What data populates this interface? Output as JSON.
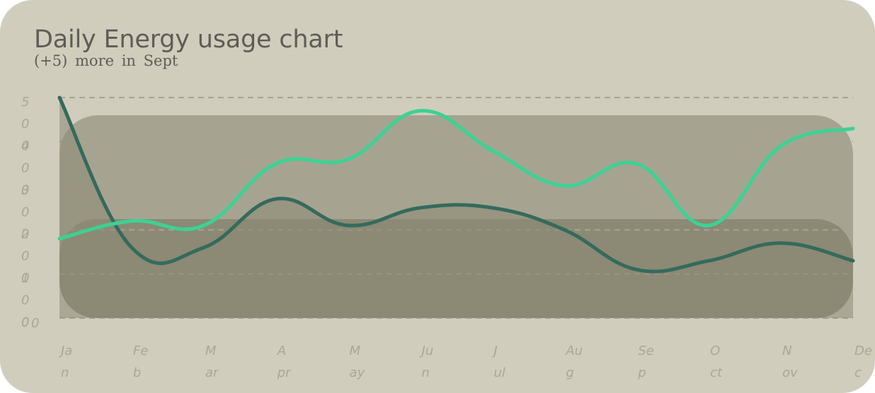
{
  "colors": {
    "card": "#d0cdbd",
    "grid": "#a6a393",
    "area_back": "#a6a491",
    "area_front": "#8c8974",
    "line_light": "#3bd294",
    "line_dark": "#336b5d",
    "line_dark_start": "#1a6557",
    "tick_text": "#a9a798",
    "title_text": "#5f5d56"
  },
  "chart_data": {
    "type": "line",
    "title": "Daily Energy usage chart",
    "subtitle": "(+5) more in Sept",
    "categories": [
      "Jan",
      "Feb",
      "Mar",
      "Apr",
      "May",
      "Jun",
      "Jul",
      "Aug",
      "Sep",
      "Oct",
      "Nov",
      "Dec"
    ],
    "category_labels": [
      [
        "Ja",
        "n"
      ],
      [
        "Fe",
        "b"
      ],
      [
        "M",
        "ar"
      ],
      [
        "A",
        "pr"
      ],
      [
        "M",
        "ay"
      ],
      [
        "Ju",
        "n"
      ],
      [
        "J",
        "ul"
      ],
      [
        "Au",
        "g"
      ],
      [
        "Se",
        "p"
      ],
      [
        "O",
        "ct"
      ],
      [
        "N",
        "ov"
      ],
      [
        "De",
        "c"
      ]
    ],
    "y_ticks": [
      {
        "value": 500,
        "chars": [
          "5",
          "0",
          "0"
        ]
      },
      {
        "value": 400,
        "chars": [
          "4",
          "0",
          "0"
        ]
      },
      {
        "value": 300,
        "chars": [
          "3",
          "0",
          "0"
        ]
      },
      {
        "value": 200,
        "chars": [
          "2",
          "0",
          "0"
        ]
      },
      {
        "value": 100,
        "chars": [
          "1",
          "0",
          "0"
        ]
      },
      {
        "value": 0,
        "chars": [
          "0"
        ]
      }
    ],
    "ylim": [
      0,
      500
    ],
    "grid": true,
    "legend": "none",
    "series": [
      {
        "values": [
          180,
          220,
          210,
          350,
          360,
          470,
          380,
          300,
          350,
          210,
          390,
          430
        ]
      },
      {
        "values": [
          500,
          160,
          160,
          270,
          210,
          250,
          250,
          200,
          110,
          130,
          170,
          130
        ]
      }
    ]
  }
}
